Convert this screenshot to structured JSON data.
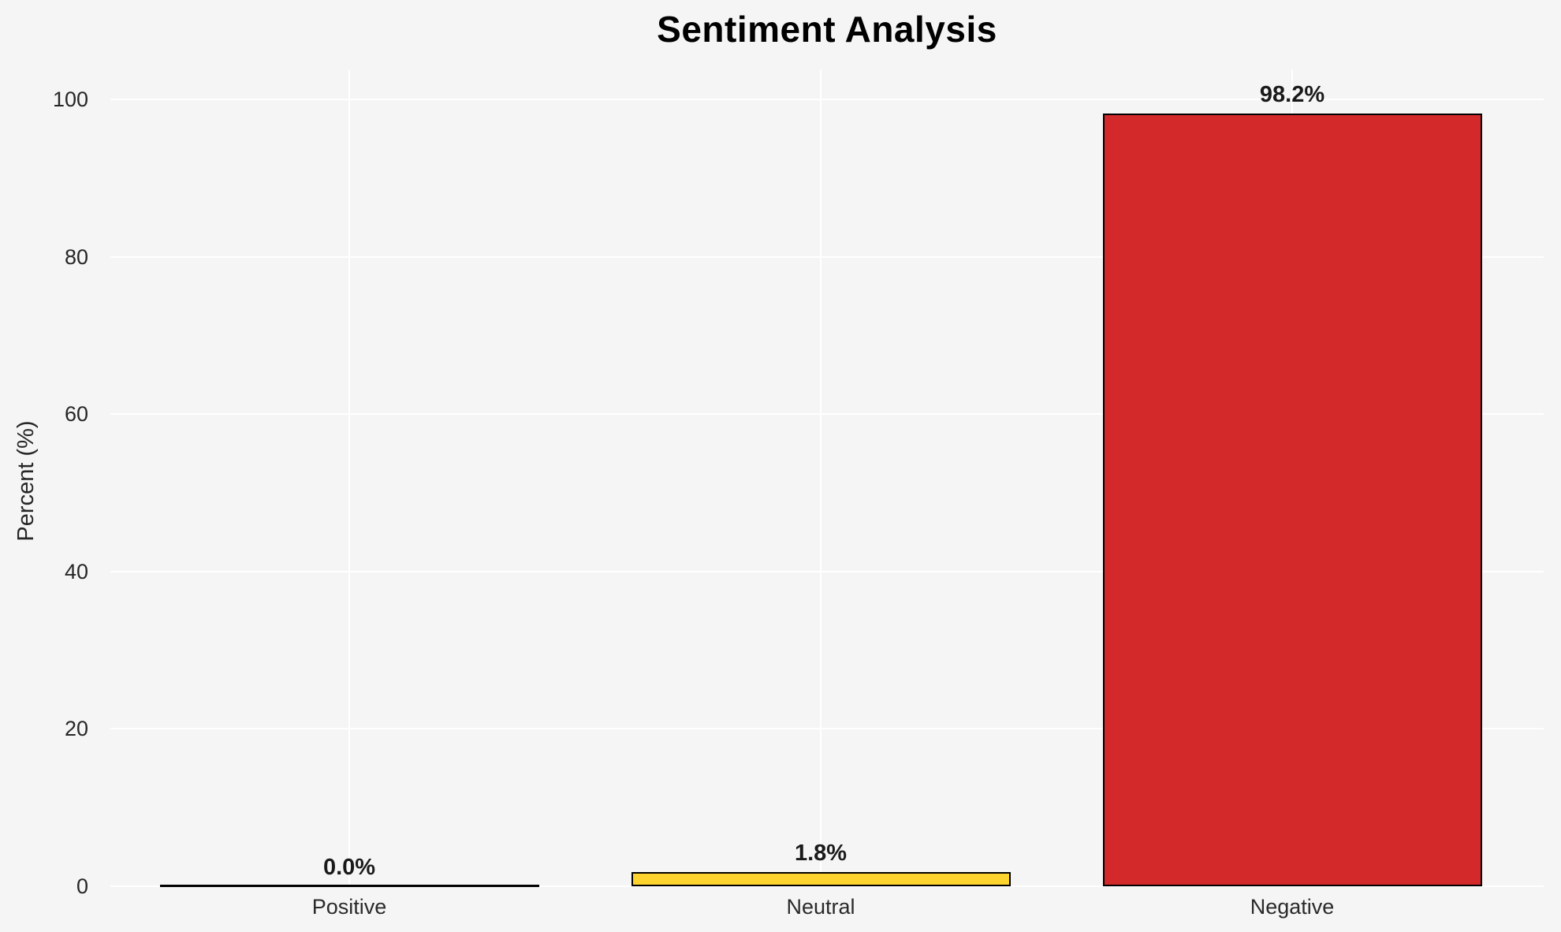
{
  "title": "Sentiment Analysis",
  "chart_data": {
    "type": "bar",
    "title": "Sentiment Analysis",
    "categories": [
      "Positive",
      "Neutral",
      "Negative"
    ],
    "values": [
      0.0,
      1.8,
      98.2
    ],
    "bar_labels": [
      "0.0%",
      "1.8%",
      "98.2%"
    ],
    "bar_colors": [
      null,
      "#fdd32f",
      "#d3292b"
    ],
    "bar_edge_color": "#000000",
    "xlabel": "",
    "ylabel": "Percent (%)",
    "yticks": [
      0,
      20,
      40,
      60,
      80,
      100
    ],
    "ylim": [
      0,
      104
    ],
    "grid": true,
    "legend": false,
    "background_color": "#f5f5f6",
    "grid_color": "#ffffff",
    "text_color": "#262626"
  }
}
